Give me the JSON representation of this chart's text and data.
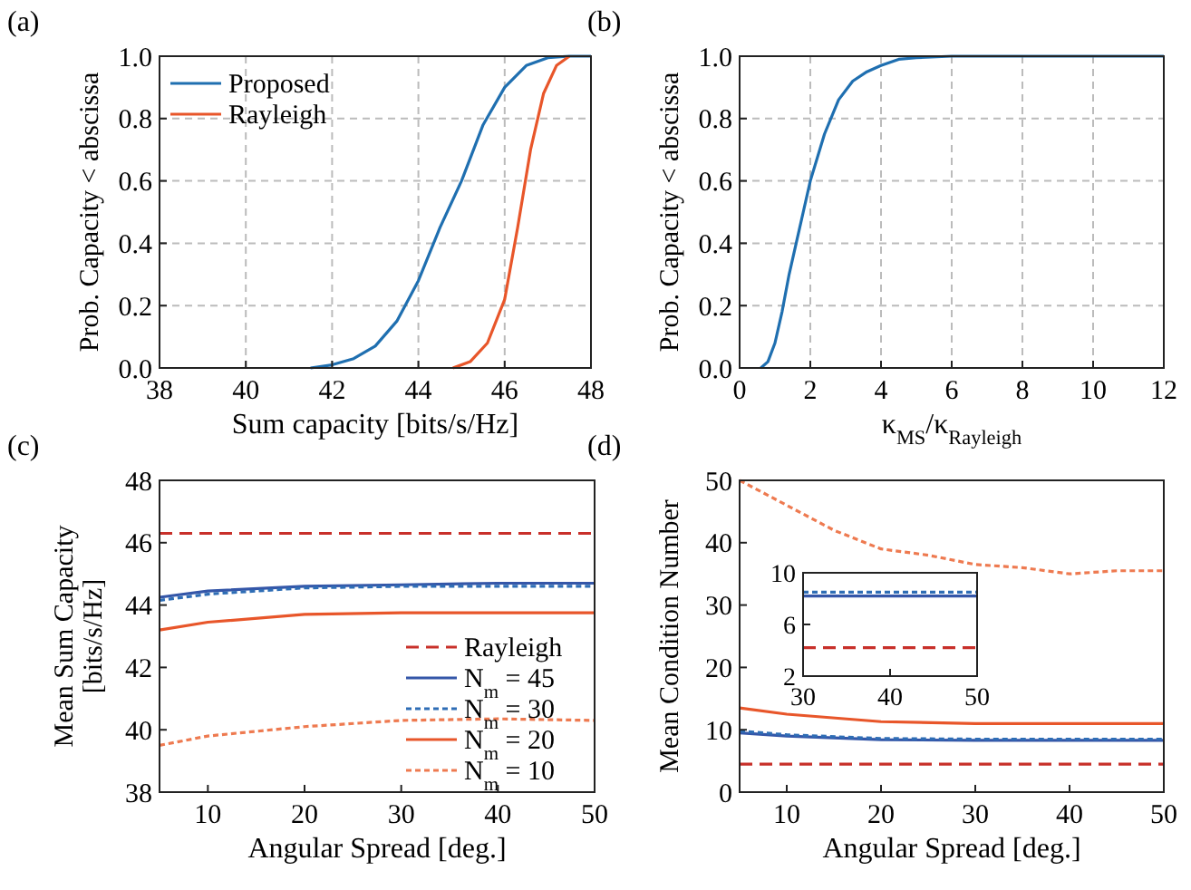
{
  "chart_data": [
    {
      "type": "line",
      "annotations": [
        "(a)"
      ],
      "xlabel": "Sum capacity [bits/s/Hz]",
      "ylabel": "Prob. Capacity < abscissa",
      "xlim": [
        38,
        48
      ],
      "xticks": [
        38,
        40,
        42,
        44,
        46,
        48
      ],
      "ylim": [
        0,
        1
      ],
      "yticks": [
        {
          "value": 0,
          "label": "0.0"
        },
        {
          "value": 0.2,
          "label": "0.2"
        },
        {
          "value": 0.4,
          "label": "0.4"
        },
        {
          "value": 0.6,
          "label": "0.6"
        },
        {
          "value": 0.8,
          "label": "0.8"
        },
        {
          "value": 1,
          "label": "1.0"
        }
      ],
      "grid": true,
      "legend": "top left",
      "series": [
        {
          "name": "Proposed",
          "color": "#1f6fb0",
          "x": [
            41.5,
            42,
            42.5,
            43,
            43.5,
            44,
            44.5,
            45,
            45.5,
            46,
            46.5,
            47,
            47.5,
            48
          ],
          "values": [
            0,
            0.01,
            0.03,
            0.07,
            0.15,
            0.28,
            0.45,
            0.6,
            0.78,
            0.9,
            0.97,
            0.995,
            1,
            1
          ]
        },
        {
          "name": "Rayleigh",
          "color": "#e8562a",
          "x": [
            44.8,
            45.2,
            45.6,
            46,
            46.3,
            46.6,
            46.9,
            47.2,
            47.5
          ],
          "values": [
            0,
            0.02,
            0.08,
            0.22,
            0.45,
            0.7,
            0.88,
            0.97,
            1
          ]
        }
      ]
    },
    {
      "type": "line",
      "annotations": [
        "(b)"
      ],
      "xlabel": "κ$_{MS}$/κ$_{Rayleigh}$",
      "ylabel": "Prob. Capacity < abscissa",
      "xlim": [
        0,
        12
      ],
      "xticks": [
        0,
        2,
        4,
        6,
        8,
        10,
        12
      ],
      "ylim": [
        0,
        1
      ],
      "yticks": [
        {
          "value": 0,
          "label": "0.0"
        },
        {
          "value": 0.2,
          "label": "0.2"
        },
        {
          "value": 0.4,
          "label": "0.4"
        },
        {
          "value": 0.6,
          "label": "0.6"
        },
        {
          "value": 0.8,
          "label": "0.8"
        },
        {
          "value": 1,
          "label": "1.0"
        }
      ],
      "grid": true,
      "series": [
        {
          "color": "#1f6fb0",
          "x": [
            0.6,
            0.8,
            1,
            1.2,
            1.4,
            1.6,
            1.8,
            2,
            2.4,
            2.8,
            3.2,
            3.6,
            4,
            4.5,
            5,
            6,
            12
          ],
          "values": [
            0,
            0.02,
            0.08,
            0.18,
            0.3,
            0.4,
            0.5,
            0.6,
            0.75,
            0.86,
            0.92,
            0.95,
            0.97,
            0.99,
            0.995,
            1,
            1
          ]
        }
      ]
    },
    {
      "type": "line",
      "annotations": [
        "(c)"
      ],
      "xlabel": "Angular Spread [deg.]",
      "ylabel": "Mean Sum Capacity [bits/s/Hz]",
      "xlim": [
        5,
        50
      ],
      "xticks": [
        10,
        20,
        30,
        40,
        50
      ],
      "ylim": [
        38,
        48
      ],
      "yticks": [
        38,
        40,
        42,
        44,
        46,
        48
      ],
      "legend": "bottom right",
      "series": [
        {
          "name": "Rayleigh",
          "color": "#c8302a",
          "line_style": "dashed",
          "x": [
            5,
            50
          ],
          "values": [
            46.3,
            46.3
          ]
        },
        {
          "name": "N$_{m}$ = 45",
          "color": "#3456a8",
          "line_style": "solid",
          "x": [
            5,
            10,
            20,
            30,
            40,
            50
          ],
          "values": [
            44.25,
            44.45,
            44.6,
            44.65,
            44.7,
            44.7
          ]
        },
        {
          "name": "N$_{m}$ = 30",
          "color": "#2e6db5",
          "line_style": "dotted",
          "x": [
            5,
            10,
            20,
            30,
            40,
            50
          ],
          "values": [
            44.15,
            44.35,
            44.55,
            44.6,
            44.6,
            44.6
          ]
        },
        {
          "name": "N$_{m}$ = 20",
          "color": "#e8562a",
          "line_style": "solid",
          "x": [
            5,
            10,
            20,
            30,
            40,
            50
          ],
          "values": [
            43.2,
            43.45,
            43.7,
            43.75,
            43.75,
            43.75
          ]
        },
        {
          "name": "N$_{m}$ = 10",
          "color": "#ee7a50",
          "line_style": "dotted",
          "x": [
            5,
            10,
            20,
            30,
            40,
            50
          ],
          "values": [
            39.5,
            39.8,
            40.1,
            40.3,
            40.35,
            40.3
          ]
        }
      ]
    },
    {
      "type": "line",
      "annotations": [
        "(d)"
      ],
      "xlabel": "Angular Spread [deg.]",
      "ylabel": "Mean Condition Number",
      "xlim": [
        5,
        50
      ],
      "xticks": [
        10,
        20,
        30,
        40,
        50
      ],
      "ylim": [
        0,
        50
      ],
      "yticks": [
        0,
        10,
        20,
        30,
        40,
        50
      ],
      "series": [
        {
          "color": "#c8302a",
          "line_style": "dashed",
          "x": [
            5,
            50
          ],
          "values": [
            4.5,
            4.5
          ]
        },
        {
          "color": "#3456a8",
          "line_style": "solid",
          "x": [
            5,
            10,
            20,
            30,
            40,
            50
          ],
          "values": [
            9.5,
            9,
            8.4,
            8.3,
            8.3,
            8.3
          ]
        },
        {
          "color": "#2e6db5",
          "line_style": "dotted",
          "x": [
            5,
            10,
            20,
            30,
            40,
            50
          ],
          "values": [
            9.8,
            9.2,
            8.6,
            8.5,
            8.5,
            8.5
          ]
        },
        {
          "color": "#e8562a",
          "line_style": "solid",
          "x": [
            5,
            10,
            20,
            30,
            40,
            50
          ],
          "values": [
            13.5,
            12.5,
            11.3,
            11,
            11,
            11
          ]
        },
        {
          "color": "#ee7a50",
          "line_style": "dotted",
          "x": [
            5,
            10,
            15,
            20,
            25,
            30,
            35,
            40,
            45,
            50
          ],
          "values": [
            50,
            46,
            42,
            39,
            38,
            36.5,
            36,
            35,
            35.5,
            35.5
          ]
        }
      ]
    },
    {
      "type": "line",
      "xlim": [
        30,
        50
      ],
      "xticks": [
        30,
        40,
        50
      ],
      "ylim": [
        2,
        10
      ],
      "yticks": [
        2,
        6,
        10
      ],
      "series": [
        {
          "color": "#c8302a",
          "line_style": "dashed",
          "x": [
            30,
            50
          ],
          "values": [
            4.2,
            4.2
          ]
        },
        {
          "color": "#3456a8",
          "line_style": "solid",
          "x": [
            30,
            50
          ],
          "values": [
            8.2,
            8.2
          ]
        },
        {
          "color": "#2e6db5",
          "line_style": "dotted",
          "x": [
            30,
            50
          ],
          "values": [
            8.5,
            8.5
          ]
        }
      ]
    }
  ]
}
